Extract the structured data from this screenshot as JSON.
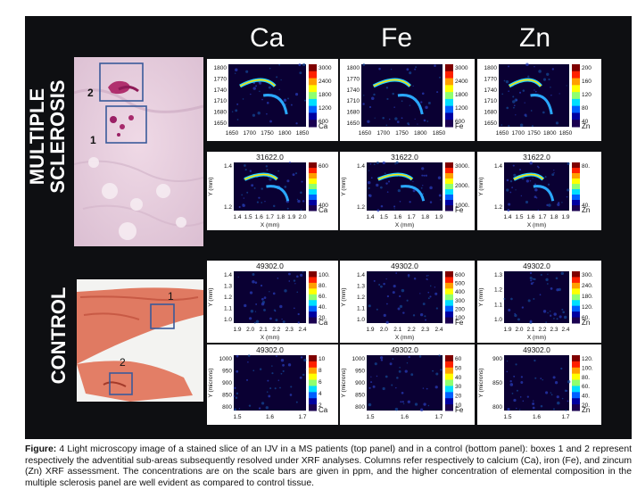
{
  "columns": [
    "Ca",
    "Fe",
    "Zn"
  ],
  "row_labels": {
    "top": [
      "MULTIPLE",
      "SCLEROSIS"
    ],
    "bottom": "CONTROL"
  },
  "photo_labels": {
    "ms": [
      "2",
      "1"
    ],
    "control": [
      "1",
      "2"
    ]
  },
  "panels": [
    {
      "id": "ms-ca-1",
      "title": "",
      "element": "Ca",
      "xticks": [
        "1650",
        "1700",
        "1750",
        "1800",
        "1850"
      ],
      "yticks": [
        "1800",
        "1770",
        "1740",
        "1710",
        "1680",
        "1650"
      ],
      "ylabel": "",
      "xlabel": "",
      "cbar": [
        "3000",
        "2400",
        "1800",
        "1200",
        "600"
      ]
    },
    {
      "id": "ms-fe-1",
      "title": "",
      "element": "Fe",
      "xticks": [
        "1650",
        "1700",
        "1750",
        "1800",
        "1850"
      ],
      "yticks": [
        "1800",
        "1770",
        "1740",
        "1710",
        "1680",
        "1650"
      ],
      "ylabel": "",
      "xlabel": "",
      "cbar": [
        "3000",
        "2400",
        "1800",
        "1200",
        "600"
      ]
    },
    {
      "id": "ms-zn-1",
      "title": "",
      "element": "Zn",
      "xticks": [
        "1650",
        "1700",
        "1750",
        "1800",
        "1850"
      ],
      "yticks": [
        "1800",
        "1770",
        "1740",
        "1710",
        "1680",
        "1650"
      ],
      "ylabel": "",
      "xlabel": "",
      "cbar": [
        "200",
        "160",
        "120",
        "80",
        "40"
      ]
    },
    {
      "id": "ms-ca-2",
      "title": "31622.0",
      "element": "Ca",
      "xticks": [
        "1.4",
        "1.5",
        "1.6",
        "1.7",
        "1.8",
        "1.9",
        "2.0"
      ],
      "yticks": [
        "1.4",
        "1.2"
      ],
      "ylabel": "Y (mm)",
      "xlabel": "X (mm)",
      "cbar": [
        "600",
        "400"
      ]
    },
    {
      "id": "ms-fe-2",
      "title": "31622.0",
      "element": "Fe",
      "xticks": [
        "1.4",
        "1.5",
        "1.6",
        "1.7",
        "1.8",
        "1.9"
      ],
      "yticks": [
        "1.4",
        "1.2"
      ],
      "ylabel": "Y (mm)",
      "xlabel": "X (mm)",
      "cbar": [
        "3000.",
        "2000.",
        "1000."
      ]
    },
    {
      "id": "ms-zn-2",
      "title": "31622.0",
      "element": "Zn",
      "xticks": [
        "1.4",
        "1.5",
        "1.6",
        "1.7",
        "1.8",
        "1.9"
      ],
      "yticks": [
        "1.4",
        "1.2"
      ],
      "ylabel": "Y (mm)",
      "xlabel": "X (mm)",
      "cbar": [
        "80.",
        "40."
      ]
    },
    {
      "id": "ct-ca-1",
      "title": "49302.0",
      "element": "Ca",
      "xticks": [
        "1.9",
        "2.0",
        "2.1",
        "2.2",
        "2.3",
        "2.4"
      ],
      "yticks": [
        "1.4",
        "1.3",
        "1.2",
        "1.1",
        "1.0"
      ],
      "ylabel": "Y (mm)",
      "xlabel": "X (mm)",
      "cbar": [
        "100.",
        "80.",
        "60.",
        "40.",
        "20."
      ]
    },
    {
      "id": "ct-fe-1",
      "title": "49302.0",
      "element": "Fe",
      "xticks": [
        "1.9",
        "2.0",
        "2.1",
        "2.2",
        "2.3",
        "2.4"
      ],
      "yticks": [
        "1.4",
        "1.3",
        "1.2",
        "1.1",
        "1.0"
      ],
      "ylabel": "Y (mm)",
      "xlabel": "X (mm)",
      "cbar": [
        "600",
        "500",
        "400",
        "300",
        "200",
        "100"
      ]
    },
    {
      "id": "ct-zn-1",
      "title": "49302.0",
      "element": "Zn",
      "xticks": [
        "1.9",
        "2.0",
        "2.1",
        "2.2",
        "2.3",
        "2.4"
      ],
      "yticks": [
        "1.3",
        "1.2",
        "1.1",
        "1.0"
      ],
      "ylabel": "Y (mm)",
      "xlabel": "X (mm)",
      "cbar": [
        "300.",
        "240.",
        "180.",
        "120.",
        "60."
      ]
    },
    {
      "id": "ct-ca-2",
      "title": "49302.0",
      "element": "Ca",
      "xticks": [
        "1.5",
        "1.6",
        "1.7"
      ],
      "yticks": [
        "1000",
        "950",
        "900",
        "850",
        "800"
      ],
      "ylabel": "Y (microns)",
      "xlabel": "",
      "cbar": [
        "10",
        "8",
        "6",
        "4",
        "2"
      ]
    },
    {
      "id": "ct-fe-2",
      "title": "49302.0",
      "element": "Fe",
      "xticks": [
        "1.5",
        "1.6",
        "1.7"
      ],
      "yticks": [
        "1000",
        "950",
        "900",
        "850",
        "800"
      ],
      "ylabel": "Y (microns)",
      "xlabel": "",
      "cbar": [
        "60",
        "50",
        "40",
        "30",
        "20",
        "10"
      ]
    },
    {
      "id": "ct-zn-2",
      "title": "49302.0",
      "element": "Zn",
      "xticks": [
        "1.5",
        "1.6",
        "1.7"
      ],
      "yticks": [
        "900",
        "850",
        "800"
      ],
      "ylabel": "Y (microns)",
      "xlabel": "",
      "cbar": [
        "120.",
        "100.",
        "80.",
        "60.",
        "40.",
        "20."
      ]
    }
  ],
  "caption": {
    "lead": "Figure:",
    "number": "4",
    "text": "Light microscopy image of a stained slice of an IJV in a MS patients (top panel) and in a control (bottom panel): boxes 1 and 2 represent respectively the adventitial sub-areas subsequently resolved under XRF analyses. Columns refer respectively to calcium (Ca), iron (Fe), and zincum (Zn) XRF assessment. The concentrations are on the scale bars are given in ppm, and the higher concentration of elemental composition in the multiple sclerosis panel are well evident as compared to control tissue."
  },
  "colors": {
    "background": "#0e0f12",
    "map_dark": "#0a0033",
    "ms_stain": "#e9cfe0",
    "control_stain": "#e57b66",
    "box": "#3a5a9a"
  }
}
